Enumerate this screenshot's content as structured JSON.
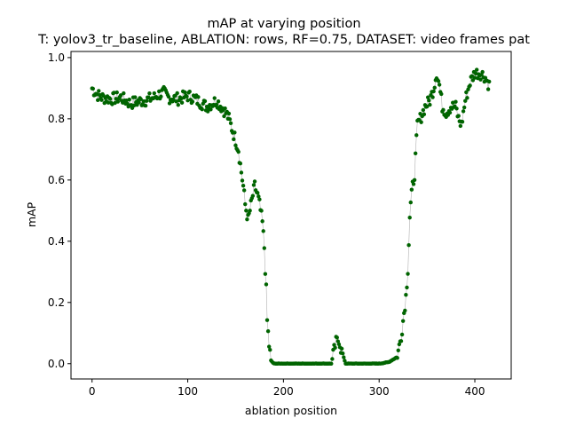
{
  "chart_data": {
    "type": "scatter",
    "title": "mAP at varying position",
    "subtitle": "T: yolov3_tr_baseline, ABLATION: rows, RF=0.75, DATASET: video frames pat",
    "xlabel": "ablation position",
    "ylabel": "mAP",
    "xlim": [
      -22,
      438
    ],
    "ylim": [
      -0.05,
      1.02
    ],
    "xticks": [
      0,
      100,
      200,
      300,
      400
    ],
    "yticks": [
      0.0,
      0.2,
      0.4,
      0.6,
      0.8,
      1.0
    ],
    "xtick_labels": [
      "0",
      "100",
      "200",
      "300",
      "400"
    ],
    "ytick_labels": [
      "0.0",
      "0.2",
      "0.4",
      "0.6",
      "0.8",
      "1.0"
    ],
    "grid": false,
    "marker_color": "#006400",
    "line_color": "#b0b0b0",
    "series": [
      {
        "anchors_x": [
          0,
          5,
          10,
          20,
          30,
          35,
          40,
          45,
          55,
          65,
          70,
          75,
          80,
          90,
          95,
          100,
          105,
          110,
          115,
          120,
          125,
          130,
          135,
          140,
          143,
          146,
          150,
          153,
          155,
          158,
          160,
          163,
          165,
          168,
          170,
          173,
          175,
          178,
          180,
          182,
          183,
          185,
          187,
          190,
          200,
          250,
          252,
          255,
          258,
          260,
          263,
          265,
          268,
          270,
          300,
          310,
          318,
          320,
          323,
          325,
          328,
          330,
          332,
          333,
          335,
          337,
          340,
          343,
          348,
          353,
          357,
          360,
          363,
          366,
          370,
          375,
          380,
          383,
          386,
          390,
          395,
          400,
          405,
          410,
          415
        ],
        "anchors_y": [
          0.9,
          0.88,
          0.87,
          0.865,
          0.87,
          0.86,
          0.85,
          0.855,
          0.86,
          0.87,
          0.88,
          0.885,
          0.87,
          0.865,
          0.87,
          0.875,
          0.87,
          0.86,
          0.85,
          0.84,
          0.85,
          0.86,
          0.84,
          0.82,
          0.8,
          0.77,
          0.73,
          0.7,
          0.65,
          0.58,
          0.52,
          0.47,
          0.5,
          0.55,
          0.58,
          0.55,
          0.52,
          0.46,
          0.38,
          0.24,
          0.14,
          0.06,
          0.01,
          0.0,
          0.0,
          0.0,
          0.03,
          0.07,
          0.08,
          0.05,
          0.02,
          0.0,
          0.0,
          0.0,
          0.0,
          0.005,
          0.02,
          0.04,
          0.09,
          0.14,
          0.22,
          0.31,
          0.48,
          0.52,
          0.58,
          0.62,
          0.78,
          0.8,
          0.84,
          0.86,
          0.9,
          0.95,
          0.91,
          0.84,
          0.82,
          0.84,
          0.84,
          0.8,
          0.78,
          0.86,
          0.92,
          0.95,
          0.95,
          0.94,
          0.91
        ]
      }
    ]
  }
}
